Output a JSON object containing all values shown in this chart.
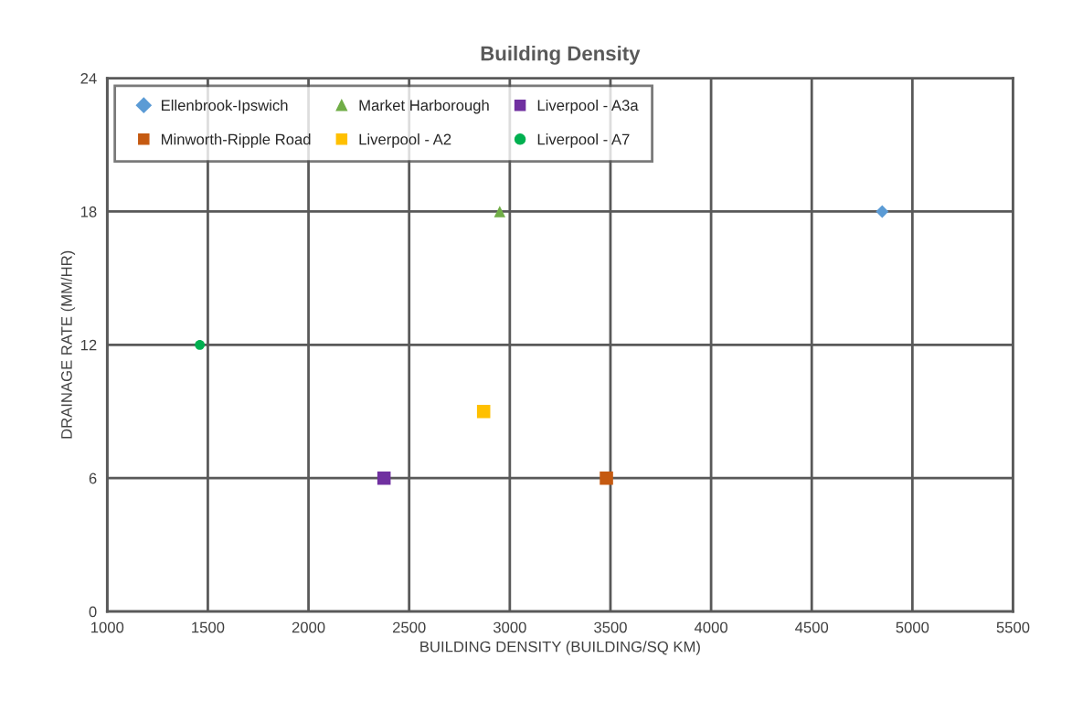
{
  "chart_data": {
    "type": "scatter",
    "title": "Building Density",
    "xlabel": "BUILDING DENSITY (BUILDING/SQ KM)",
    "ylabel": "DRAINAGE RATE (MM/HR)",
    "xlim": [
      1000,
      5500
    ],
    "xticks": [
      1000,
      1500,
      2000,
      2500,
      3000,
      3500,
      4000,
      4500,
      5000,
      5500
    ],
    "ylim": [
      0,
      24
    ],
    "yticks": [
      0,
      6,
      12,
      18,
      24
    ],
    "grid": true,
    "legend": "top left",
    "series": [
      {
        "name": "Ellenbrook-Ipswich",
        "color": "#5b9bd5",
        "marker": "diamond",
        "x": [
          4850
        ],
        "values": [
          18
        ]
      },
      {
        "name": "Minworth-Ripple Road",
        "color": "#c55a11",
        "marker": "square",
        "x": [
          3480
        ],
        "values": [
          6
        ]
      },
      {
        "name": "Market Harborough",
        "color": "#70ad47",
        "marker": "triangle",
        "x": [
          2950
        ],
        "values": [
          18
        ]
      },
      {
        "name": "Liverpool - A2",
        "color": "#ffc000",
        "marker": "square",
        "x": [
          2870
        ],
        "values": [
          9
        ]
      },
      {
        "name": "Liverpool - A3a",
        "color": "#7030a0",
        "marker": "square",
        "x": [
          2375
        ],
        "values": [
          6
        ]
      },
      {
        "name": "Liverpool - A7",
        "color": "#00b050",
        "marker": "circle",
        "x": [
          1460
        ],
        "values": [
          12
        ]
      }
    ]
  }
}
